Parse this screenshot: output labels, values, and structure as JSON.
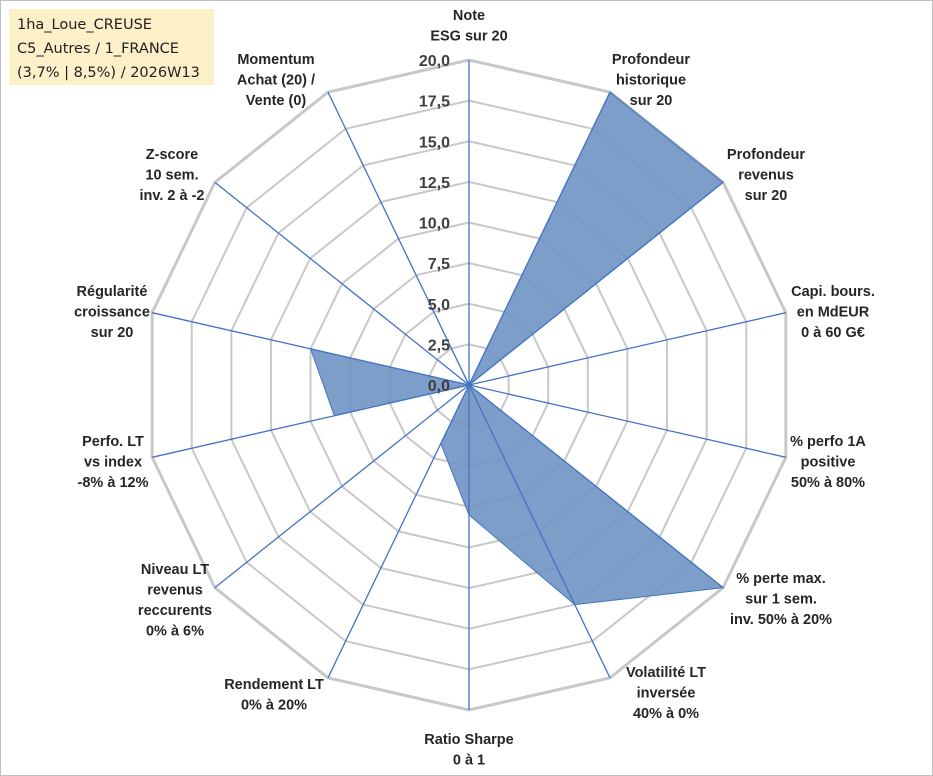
{
  "info": {
    "line1": "1ha_Loue_CREUSE",
    "line2": "C5_Autres / 1_FRANCE",
    "line3": "(3,7% | 8,5%) / 2026W13"
  },
  "colors": {
    "fill": "#6f93c2",
    "line": "#4472c4",
    "grid": "#c8c8c8",
    "info_bg": "#fdefc8"
  },
  "chart_data": {
    "type": "radar",
    "rmin": 0,
    "rmax": 20,
    "grid": true,
    "tick_labels": [
      "0,0",
      "2,5",
      "5,0",
      "7,5",
      "10,0",
      "12,5",
      "15,0",
      "17,5",
      "20,0"
    ],
    "axes": [
      [
        "Note",
        "ESG sur 20"
      ],
      [
        "Profondeur",
        "historique",
        "sur 20"
      ],
      [
        "Profondeur",
        "revenus",
        "sur 20"
      ],
      [
        "Capi. bours.",
        "en MdEUR",
        "0 à 60 G€"
      ],
      [
        "% perfo 1A",
        "positive",
        "50% à 80%"
      ],
      [
        "% perte max.",
        "sur 1 sem.",
        "inv. 50% à 20%"
      ],
      [
        "Volatilité LT",
        "inversée",
        "40% à 0%"
      ],
      [
        "Ratio Sharpe",
        "0 à 1"
      ],
      [
        "Rendement LT",
        "0% à 20%"
      ],
      [
        "Niveau LT",
        "revenus",
        "reccurents",
        "0% à 6%"
      ],
      [
        "Perfo. LT",
        "vs index",
        "-8% à 12%"
      ],
      [
        "Régularité",
        "croissance",
        "sur 20"
      ],
      [
        "Z-score",
        "10 sem.",
        "inv. 2 à -2"
      ],
      [
        "Momentum",
        "Achat (20) /",
        "Vente (0)"
      ]
    ],
    "values": [
      0,
      20,
      20,
      0,
      0,
      20,
      15,
      8,
      4,
      0,
      8.5,
      10,
      0,
      4
    ]
  }
}
